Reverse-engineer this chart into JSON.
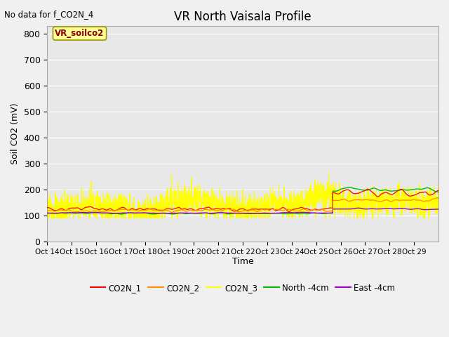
{
  "title": "VR North Vaisala Profile",
  "subtitle": "No data for f_CO2N_4",
  "ylabel": "Soil CO2 (mV)",
  "xlabel": "Time",
  "box_label": "VR_soilco2",
  "ylim": [
    0,
    830
  ],
  "yticks": [
    0,
    100,
    200,
    300,
    400,
    500,
    600,
    700,
    800
  ],
  "xtick_labels": [
    "Oct 14",
    "Oct 15",
    "Oct 16",
    "Oct 17",
    "Oct 18",
    "Oct 19",
    "Oct 20",
    "Oct 21",
    "Oct 22",
    "Oct 23",
    "Oct 24",
    "Oct 25",
    "Oct 26",
    "Oct 27",
    "Oct 28",
    "Oct 29"
  ],
  "fig_bg": "#f0f0f0",
  "plot_bg": "#e8e8e8",
  "colors": {
    "CO2N_1": "#ff0000",
    "CO2N_2": "#ff8c00",
    "CO2N_3": "#ffff00",
    "North_4cm": "#00bb00",
    "East_4cm": "#9900cc"
  },
  "legend_labels": [
    "CO2N_1",
    "CO2N_2",
    "CO2N_3",
    "North -4cm",
    "East -4cm"
  ]
}
